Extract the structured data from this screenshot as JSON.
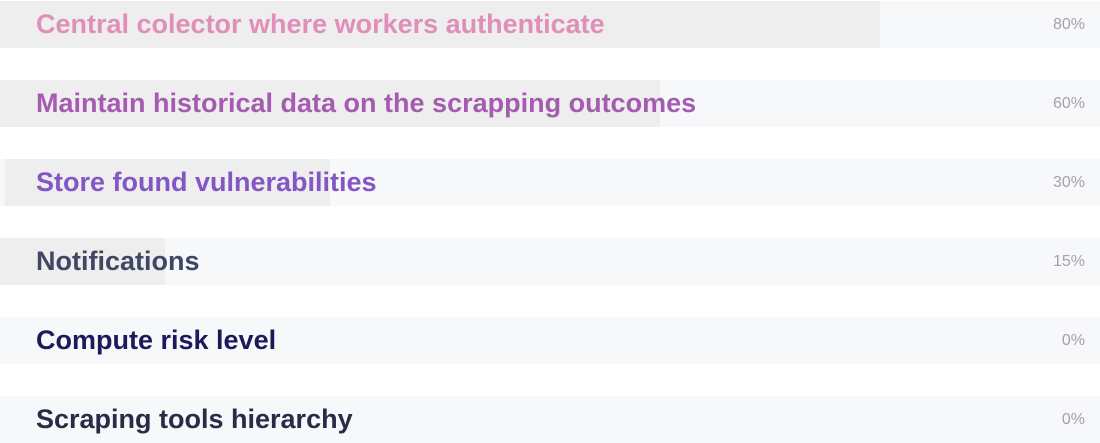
{
  "tasks": [
    {
      "label": "Central colector where workers authenticate",
      "percent_text": "80%",
      "progress": 0.8,
      "color": "#df8fb8"
    },
    {
      "label": "Maintain historical data on the scrapping outcomes",
      "percent_text": "60%",
      "progress": 0.6,
      "color": "#a55cb0"
    },
    {
      "label": "Store found vulnerabilities",
      "percent_text": "30%",
      "progress": 0.3,
      "color": "#8456c5"
    },
    {
      "label": "Notifications",
      "percent_text": "15%",
      "progress": 0.15,
      "color": "#404765"
    },
    {
      "label": "Compute risk level",
      "percent_text": "0%",
      "progress": 0.0,
      "color": "#1c1a5b"
    },
    {
      "label": "Scraping tools hierarchy",
      "percent_text": "0%",
      "progress": 0.0,
      "color": "#2b2a47"
    }
  ]
}
